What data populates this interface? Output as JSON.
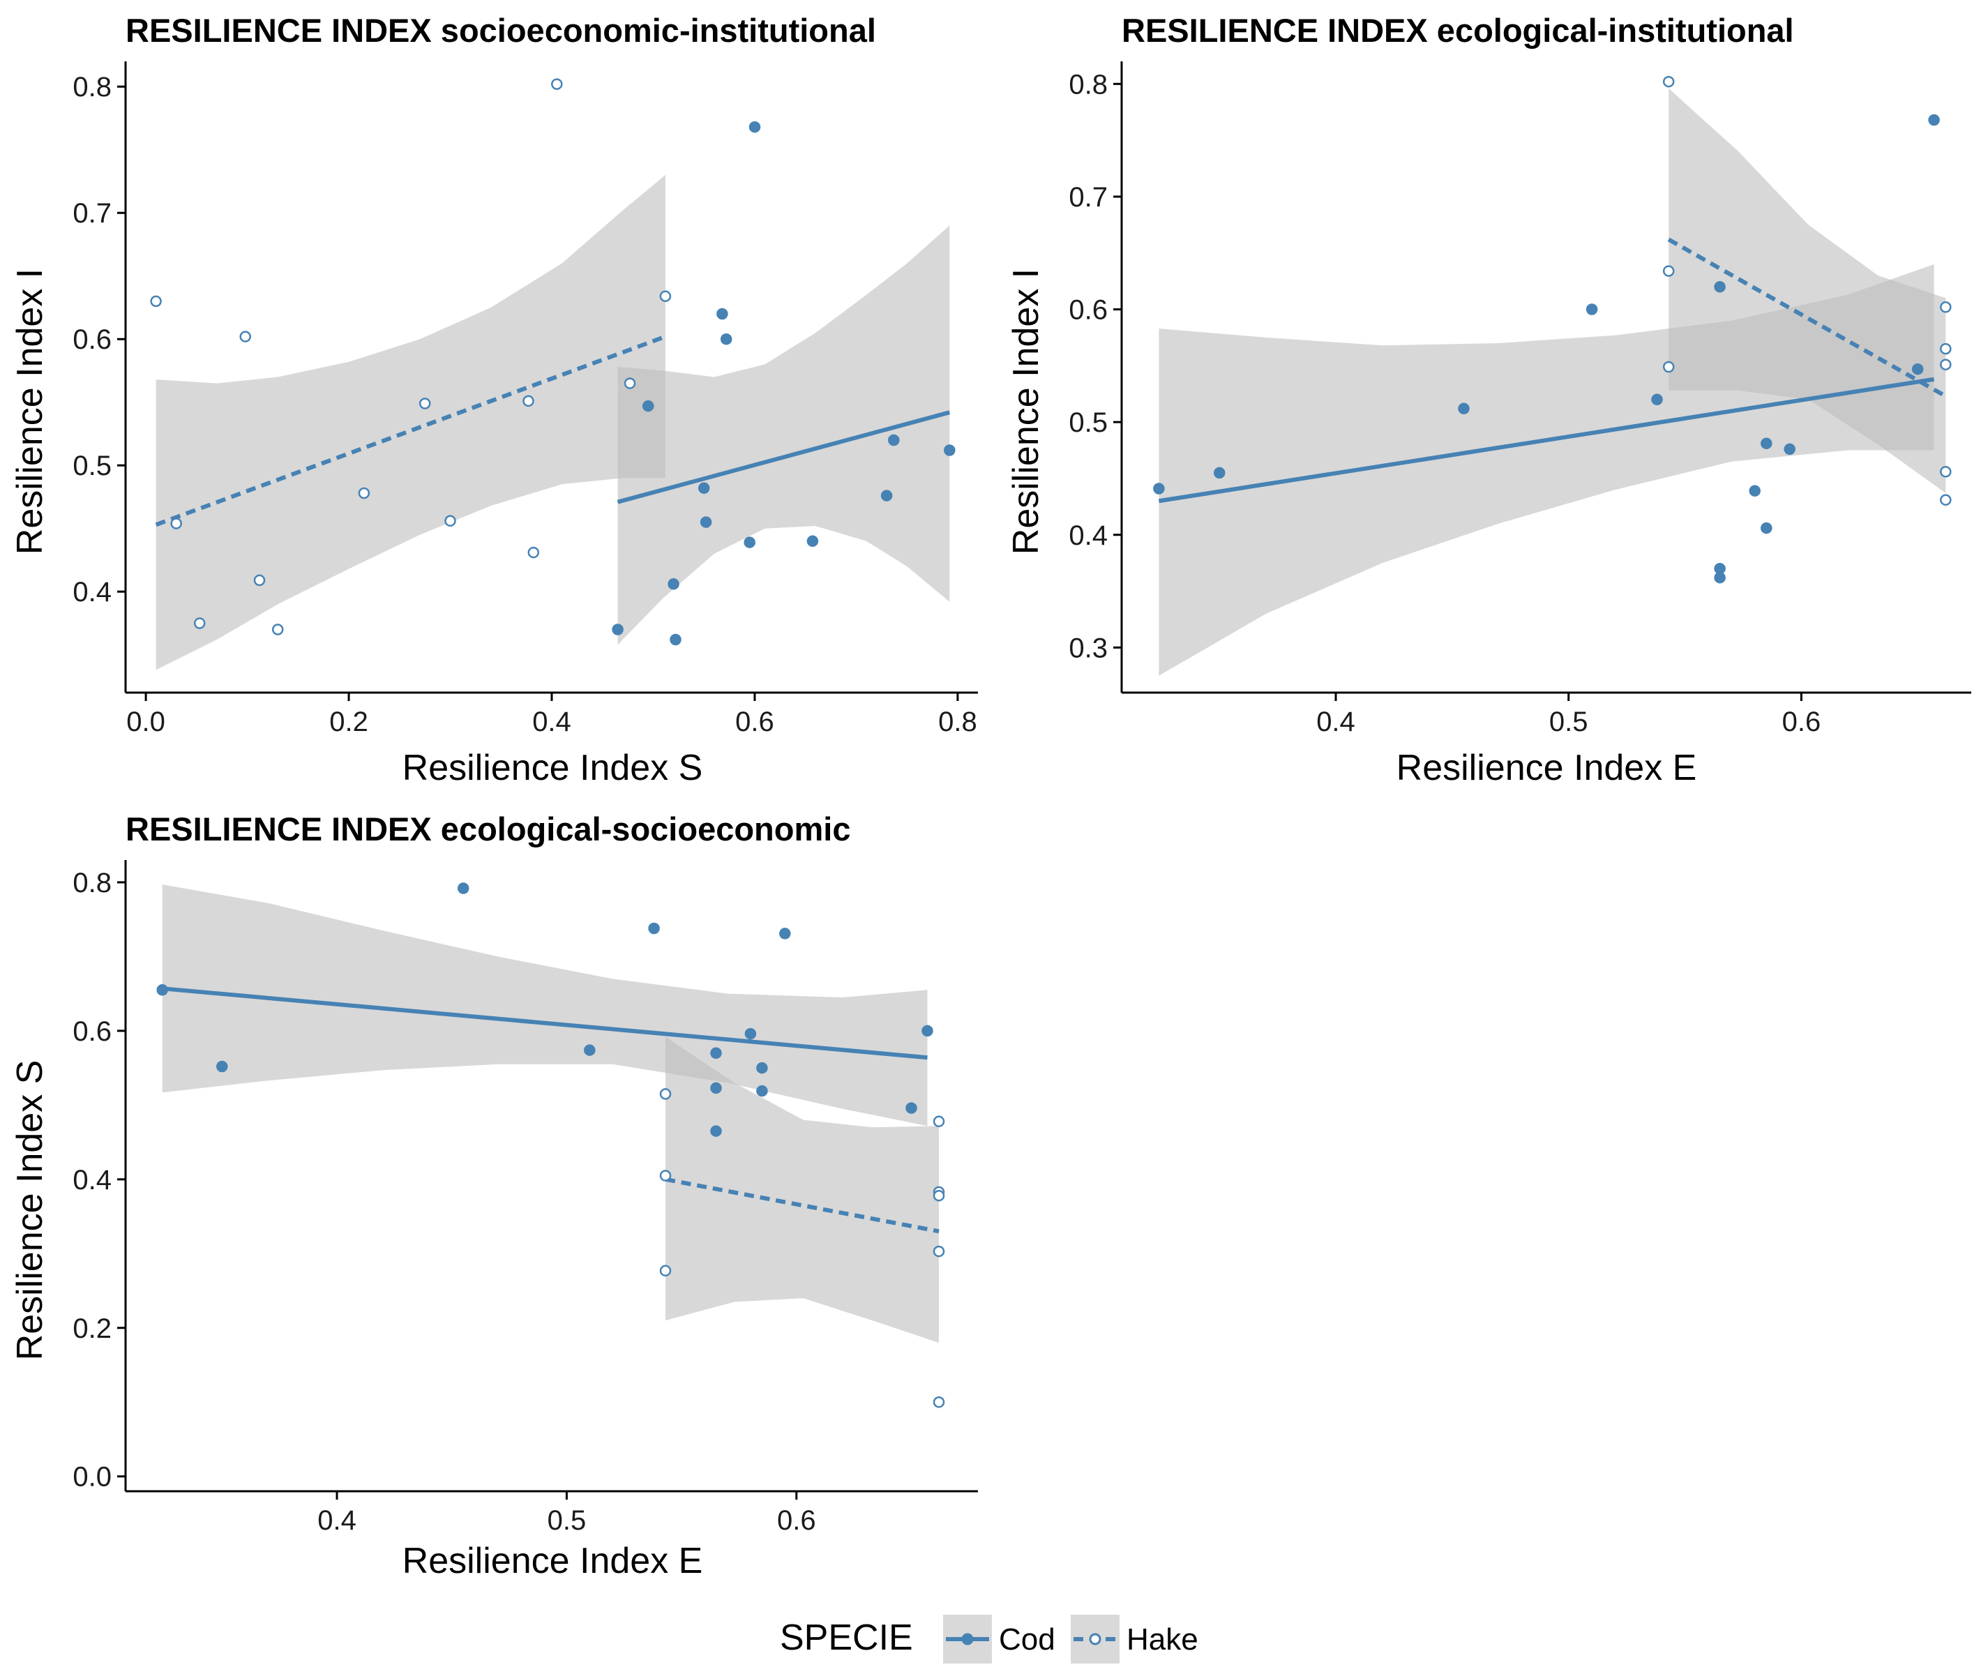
{
  "legend": {
    "title": "SPECIE",
    "position": "bottom",
    "items": [
      {
        "label": "Cod",
        "linetype": "solid",
        "filled": true
      },
      {
        "label": "Hake",
        "linetype": "dashed",
        "filled": false
      }
    ]
  },
  "colors": {
    "series": "#4682B4",
    "ribbon": "#BEBEBE",
    "axis": "#000000",
    "background": "#FFFFFF"
  },
  "chart_data": [
    {
      "type": "scatter",
      "title": "RESILIENCE INDEX socioeconomic-institutional",
      "xlabel": "Resilience Index S",
      "ylabel": "Resilience Index I",
      "xlim": [
        -0.02,
        0.82
      ],
      "ylim": [
        0.32,
        0.82
      ],
      "xticks": [
        0.0,
        0.2,
        0.4,
        0.6,
        0.8
      ],
      "xtick_labels": [
        "0.0",
        "0.2",
        "0.4",
        "0.6",
        "0.8"
      ],
      "yticks": [
        0.4,
        0.5,
        0.6,
        0.7,
        0.8
      ],
      "ytick_labels": [
        "0.4",
        "0.5",
        "0.6",
        "0.7",
        "0.8"
      ],
      "grid": false,
      "series": [
        {
          "name": "Cod",
          "points": [
            [
              0.465,
              0.37
            ],
            [
              0.495,
              0.547
            ],
            [
              0.55,
              0.482
            ],
            [
              0.552,
              0.455
            ],
            [
              0.52,
              0.406
            ],
            [
              0.522,
              0.362
            ],
            [
              0.568,
              0.62
            ],
            [
              0.572,
              0.6
            ],
            [
              0.6,
              0.768
            ],
            [
              0.595,
              0.439
            ],
            [
              0.657,
              0.44
            ],
            [
              0.73,
              0.476
            ],
            [
              0.737,
              0.52
            ],
            [
              0.792,
              0.512
            ]
          ],
          "fit": {
            "x": [
              0.465,
              0.792
            ],
            "y": [
              0.471,
              0.542
            ]
          },
          "band": {
            "x": [
              0.465,
              0.51,
              0.56,
              0.61,
              0.66,
              0.71,
              0.75,
              0.792
            ],
            "lower": [
              0.358,
              0.395,
              0.43,
              0.45,
              0.452,
              0.44,
              0.42,
              0.392
            ],
            "upper": [
              0.578,
              0.575,
              0.57,
              0.58,
              0.605,
              0.635,
              0.66,
              0.69
            ]
          }
        },
        {
          "name": "Hake",
          "points": [
            [
              0.01,
              0.63
            ],
            [
              0.03,
              0.454
            ],
            [
              0.053,
              0.375
            ],
            [
              0.098,
              0.602
            ],
            [
              0.112,
              0.409
            ],
            [
              0.13,
              0.37
            ],
            [
              0.215,
              0.478
            ],
            [
              0.275,
              0.549
            ],
            [
              0.3,
              0.456
            ],
            [
              0.377,
              0.551
            ],
            [
              0.382,
              0.431
            ],
            [
              0.405,
              0.802
            ],
            [
              0.477,
              0.565
            ],
            [
              0.512,
              0.634
            ]
          ],
          "fit": {
            "x": [
              0.01,
              0.512
            ],
            "y": [
              0.453,
              0.602
            ]
          },
          "band": {
            "x": [
              0.01,
              0.07,
              0.13,
              0.2,
              0.27,
              0.34,
              0.41,
              0.47,
              0.512
            ],
            "lower": [
              0.338,
              0.362,
              0.39,
              0.418,
              0.445,
              0.468,
              0.485,
              0.49,
              0.49
            ],
            "upper": [
              0.568,
              0.565,
              0.57,
              0.582,
              0.6,
              0.625,
              0.66,
              0.702,
              0.73
            ]
          }
        }
      ]
    },
    {
      "type": "scatter",
      "title": "RESILIENCE INDEX ecological-institutional",
      "xlabel": "Resilience Index E",
      "ylabel": "Resilience Index I",
      "xlim": [
        0.308,
        0.673
      ],
      "ylim": [
        0.26,
        0.82
      ],
      "xticks": [
        0.4,
        0.5,
        0.6
      ],
      "xtick_labels": [
        "0.4",
        "0.5",
        "0.6"
      ],
      "yticks": [
        0.3,
        0.4,
        0.5,
        0.6,
        0.7,
        0.8
      ],
      "ytick_labels": [
        "0.3",
        "0.4",
        "0.5",
        "0.6",
        "0.7",
        "0.8"
      ],
      "grid": false,
      "series": [
        {
          "name": "Cod",
          "points": [
            [
              0.324,
              0.441
            ],
            [
              0.35,
              0.455
            ],
            [
              0.455,
              0.512
            ],
            [
              0.51,
              0.6
            ],
            [
              0.538,
              0.52
            ],
            [
              0.565,
              0.62
            ],
            [
              0.565,
              0.37
            ],
            [
              0.565,
              0.362
            ],
            [
              0.58,
              0.439
            ],
            [
              0.585,
              0.481
            ],
            [
              0.585,
              0.406
            ],
            [
              0.595,
              0.476
            ],
            [
              0.65,
              0.547
            ],
            [
              0.657,
              0.768
            ]
          ],
          "fit": {
            "x": [
              0.324,
              0.657
            ],
            "y": [
              0.43,
              0.538
            ]
          },
          "band": {
            "x": [
              0.324,
              0.37,
              0.42,
              0.47,
              0.52,
              0.57,
              0.62,
              0.657
            ],
            "lower": [
              0.275,
              0.33,
              0.375,
              0.41,
              0.44,
              0.465,
              0.475,
              0.475
            ],
            "upper": [
              0.583,
              0.575,
              0.568,
              0.57,
              0.577,
              0.59,
              0.613,
              0.64
            ]
          }
        },
        {
          "name": "Hake",
          "points": [
            [
              0.543,
              0.802
            ],
            [
              0.543,
              0.634
            ],
            [
              0.543,
              0.549
            ],
            [
              0.662,
              0.602
            ],
            [
              0.662,
              0.565
            ],
            [
              0.662,
              0.551
            ],
            [
              0.662,
              0.456
            ],
            [
              0.662,
              0.431
            ]
          ],
          "fit": {
            "x": [
              0.543,
              0.662
            ],
            "y": [
              0.662,
              0.523
            ]
          },
          "band": {
            "x": [
              0.543,
              0.573,
              0.603,
              0.633,
              0.662
            ],
            "lower": [
              0.528,
              0.528,
              0.52,
              0.48,
              0.437
            ],
            "upper": [
              0.796,
              0.74,
              0.675,
              0.63,
              0.61
            ]
          }
        }
      ]
    },
    {
      "type": "scatter",
      "title": "RESILIENCE INDEX ecological-socioeconomic",
      "xlabel": "Resilience Index E",
      "ylabel": "Resilience Index S",
      "xlim": [
        0.308,
        0.679
      ],
      "ylim": [
        -0.02,
        0.83
      ],
      "xticks": [
        0.4,
        0.5,
        0.6
      ],
      "xtick_labels": [
        "0.4",
        "0.5",
        "0.6"
      ],
      "yticks": [
        0.0,
        0.2,
        0.4,
        0.6,
        0.8
      ],
      "ytick_labels": [
        "0.0",
        "0.2",
        "0.4",
        "0.6",
        "0.8"
      ],
      "grid": false,
      "series": [
        {
          "name": "Cod",
          "points": [
            [
              0.324,
              0.655
            ],
            [
              0.35,
              0.552
            ],
            [
              0.455,
              0.792
            ],
            [
              0.51,
              0.574
            ],
            [
              0.538,
              0.738
            ],
            [
              0.565,
              0.57
            ],
            [
              0.565,
              0.523
            ],
            [
              0.565,
              0.465
            ],
            [
              0.58,
              0.596
            ],
            [
              0.585,
              0.55
            ],
            [
              0.585,
              0.519
            ],
            [
              0.595,
              0.731
            ],
            [
              0.65,
              0.496
            ],
            [
              0.657,
              0.6
            ]
          ],
          "fit": {
            "x": [
              0.324,
              0.657
            ],
            "y": [
              0.657,
              0.564
            ]
          },
          "band": {
            "x": [
              0.324,
              0.37,
              0.42,
              0.47,
              0.52,
              0.57,
              0.62,
              0.657
            ],
            "lower": [
              0.517,
              0.533,
              0.547,
              0.555,
              0.555,
              0.53,
              0.495,
              0.472
            ],
            "upper": [
              0.797,
              0.772,
              0.735,
              0.7,
              0.67,
              0.65,
              0.645,
              0.655
            ]
          }
        },
        {
          "name": "Hake",
          "points": [
            [
              0.543,
              0.515
            ],
            [
              0.543,
              0.405
            ],
            [
              0.543,
              0.277
            ],
            [
              0.662,
              0.478
            ],
            [
              0.662,
              0.383
            ],
            [
              0.662,
              0.378
            ],
            [
              0.662,
              0.303
            ],
            [
              0.662,
              0.1
            ]
          ],
          "fit": {
            "x": [
              0.543,
              0.662
            ],
            "y": [
              0.4,
              0.33
            ]
          },
          "band": {
            "x": [
              0.543,
              0.573,
              0.603,
              0.633,
              0.662
            ],
            "lower": [
              0.21,
              0.235,
              0.24,
              0.21,
              0.18
            ],
            "upper": [
              0.592,
              0.53,
              0.48,
              0.47,
              0.472
            ]
          }
        }
      ]
    }
  ]
}
